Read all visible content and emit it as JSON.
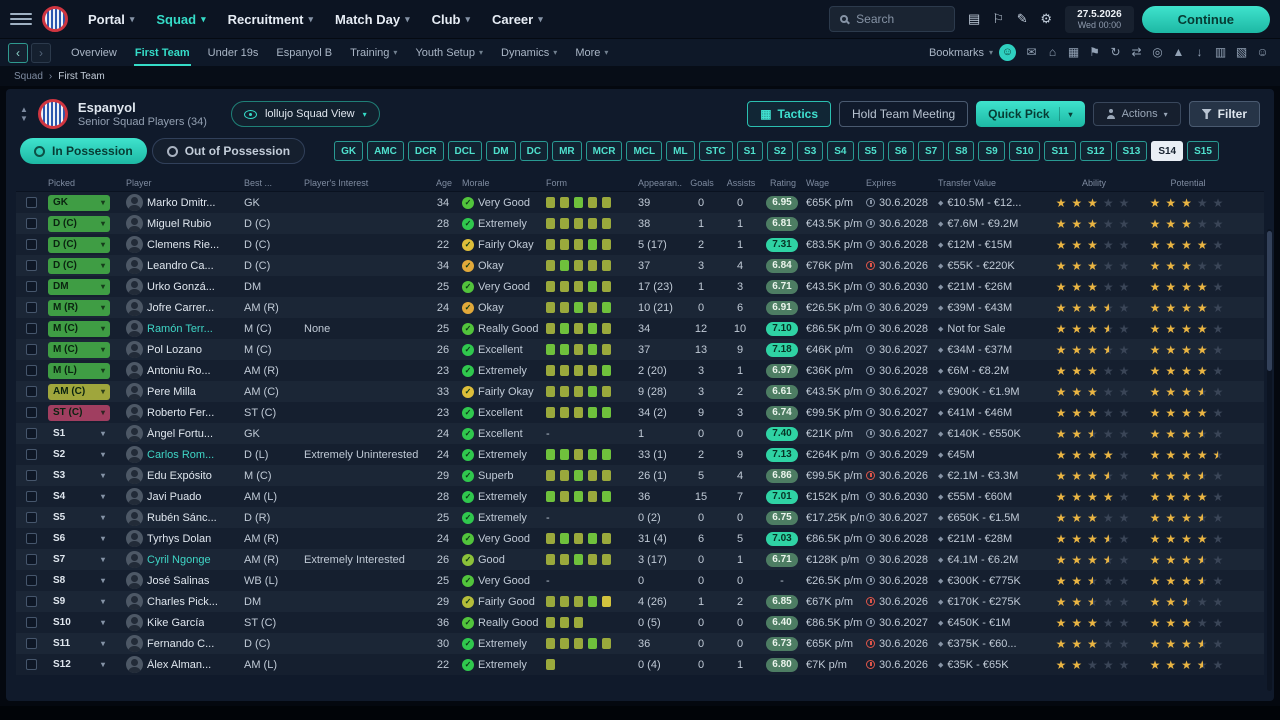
{
  "colors": {
    "accent": "#2ed3c1",
    "star": "#eab543",
    "red": "#e0564a",
    "form": {
      "g": "#6fc13c",
      "o": "#9aa93c",
      "y": "#d2c33e"
    }
  },
  "topbar": {
    "menu": [
      {
        "label": "Portal",
        "caret": true
      },
      {
        "label": "Squad",
        "caret": true,
        "active": true
      },
      {
        "label": "Recruitment",
        "caret": true
      },
      {
        "label": "Match Day",
        "caret": true
      },
      {
        "label": "Club",
        "caret": true
      },
      {
        "label": "Career",
        "caret": true
      }
    ],
    "search_placeholder": "Search",
    "icons": [
      {
        "name": "manual-icon",
        "glyph": "▤"
      },
      {
        "name": "flag-icon",
        "glyph": "⚐"
      },
      {
        "name": "edit-icon",
        "glyph": "✎"
      },
      {
        "name": "settings-icon",
        "glyph": "⚙"
      }
    ],
    "date": "27.5.2026",
    "day": "Wed",
    "time": "00:00",
    "continue_label": "Continue"
  },
  "subbar": {
    "items": [
      {
        "label": "Overview"
      },
      {
        "label": "First Team",
        "active": true
      },
      {
        "label": "Under 19s"
      },
      {
        "label": "Espanyol B"
      },
      {
        "label": "Training",
        "caret": true
      },
      {
        "label": "Youth Setup",
        "caret": true
      },
      {
        "label": "Dynamics",
        "caret": true
      },
      {
        "label": "More",
        "caret": true
      }
    ],
    "bookmarks_label": "Bookmarks",
    "icons": [
      {
        "name": "inbox-icon",
        "glyph": "✉"
      },
      {
        "name": "club-vision-icon",
        "glyph": "⌂"
      },
      {
        "name": "squad-planner-icon",
        "glyph": "▦"
      },
      {
        "name": "promises-icon",
        "glyph": "⚑"
      },
      {
        "name": "refresh-icon",
        "glyph": "↻"
      },
      {
        "name": "transfers-icon",
        "glyph": "⇄"
      },
      {
        "name": "scouting-icon",
        "glyph": "◎"
      },
      {
        "name": "training-icon",
        "glyph": "▲"
      },
      {
        "name": "download-icon",
        "glyph": "↓"
      },
      {
        "name": "calendar-icon",
        "glyph": "▥"
      },
      {
        "name": "league-icon",
        "glyph": "▧"
      },
      {
        "name": "social-icon",
        "glyph": "☺"
      }
    ]
  },
  "breadcrumb": {
    "root": "Squad",
    "sep": "›",
    "current": "First Team"
  },
  "header": {
    "club_name": "Espanyol",
    "subtitle": "Senior Squad Players (34)",
    "view_label": "lollujo Squad View",
    "tactics": "Tactics",
    "team_meeting": "Hold Team Meeting",
    "quick_pick": "Quick Pick",
    "actions": "Actions",
    "filter": "Filter"
  },
  "filters": {
    "in_possession": "In Possession",
    "out_of_possession": "Out of Possession",
    "buttons": [
      "GK",
      "AMC",
      "DCR",
      "DCL",
      "DM",
      "DC",
      "MR",
      "MCR",
      "MCL",
      "ML",
      "STC",
      "S1",
      "S2",
      "S3",
      "S4",
      "S5",
      "S6",
      "S7",
      "S8",
      "S9",
      "S10",
      "S11",
      "S12",
      "S13",
      "S14",
      "S15"
    ],
    "active_button": "S14"
  },
  "table": {
    "columns": {
      "picked": "Picked",
      "player": "Player",
      "best": "Best ...",
      "interest": "Player's Interest",
      "age": "Age",
      "morale": "Morale",
      "form": "Form",
      "apps": "Appearan...",
      "goals": "Goals",
      "assists": "Assists",
      "rating": "Rating",
      "wage": "Wage",
      "expires": "Expires",
      "value": "Transfer Value",
      "ability": "Ability",
      "potential": "Potential"
    },
    "rows": [
      {
        "picked_type": "badge",
        "picked_label": "GK",
        "picked_color": "#3f9d44",
        "name": "Marko Dmitr...",
        "link": false,
        "best": "GK",
        "interest": "",
        "age": "34",
        "morale": "Very Good",
        "morale_color": "#52c43c",
        "form": [
          "o",
          "o",
          "g",
          "o",
          "o"
        ],
        "apps": "39",
        "goals": "0",
        "assists": "0",
        "rating": "6.95",
        "wage": "€65K p/m",
        "expires": "30.6.2028",
        "expires_red": false,
        "value": "€10.5M - €12...",
        "ability": 3,
        "potential": 3
      },
      {
        "picked_type": "badge",
        "picked_label": "D (C)",
        "picked_color": "#3f9d44",
        "name": "Miguel Rubio",
        "link": false,
        "best": "D (C)",
        "interest": "",
        "age": "28",
        "morale": "Extremely",
        "morale_color": "#30c84e",
        "form": [
          "o",
          "o",
          "o",
          "o",
          "o"
        ],
        "apps": "38",
        "goals": "1",
        "assists": "1",
        "rating": "6.81",
        "wage": "€43.5K p/m",
        "expires": "30.6.2028",
        "expires_red": false,
        "value": "€7.6M - €9.2M",
        "ability": 3,
        "potential": 3
      },
      {
        "picked_type": "badge",
        "picked_label": "D (C)",
        "picked_color": "#3f9d44",
        "name": "Clemens Rie...",
        "link": false,
        "best": "D (C)",
        "interest": "",
        "age": "22",
        "morale": "Fairly Okay",
        "morale_color": "#ddbe3a",
        "form": [
          "o",
          "o",
          "o",
          "g",
          "o"
        ],
        "apps": "5 (17)",
        "goals": "2",
        "assists": "1",
        "rating": "7.31",
        "wage": "€83.5K p/m",
        "expires": "30.6.2028",
        "expires_red": false,
        "value": "€12M - €15M",
        "ability": 3,
        "potential": 4
      },
      {
        "picked_type": "badge",
        "picked_label": "D (C)",
        "picked_color": "#3f9d44",
        "name": "Leandro Ca...",
        "link": false,
        "best": "D (C)",
        "interest": "",
        "age": "34",
        "morale": "Okay",
        "morale_color": "#e2a93a",
        "form": [
          "o",
          "g",
          "o",
          "o",
          "o"
        ],
        "apps": "37",
        "goals": "3",
        "assists": "4",
        "rating": "6.84",
        "wage": "€76K p/m",
        "expires": "30.6.2026",
        "expires_red": true,
        "value": "€55K - €220K",
        "ability": 3,
        "potential": 3
      },
      {
        "picked_type": "badge",
        "picked_label": "DM",
        "picked_color": "#3f9d44",
        "name": "Urko Gonzá...",
        "link": false,
        "best": "DM",
        "interest": "",
        "age": "25",
        "morale": "Very Good",
        "morale_color": "#52c43c",
        "form": [
          "o",
          "o",
          "o",
          "g",
          "o"
        ],
        "apps": "17 (23)",
        "goals": "1",
        "assists": "3",
        "rating": "6.71",
        "wage": "€43.5K p/m",
        "expires": "30.6.2030",
        "expires_red": false,
        "value": "€21M - €26M",
        "ability": 3,
        "potential": 4
      },
      {
        "picked_type": "badge",
        "picked_label": "M (R)",
        "picked_color": "#3f9d44",
        "name": "Jofre Carrer...",
        "link": false,
        "best": "AM (R)",
        "interest": "",
        "age": "24",
        "morale": "Okay",
        "morale_color": "#e2a93a",
        "form": [
          "o",
          "o",
          "g",
          "o",
          "g"
        ],
        "apps": "10 (21)",
        "goals": "0",
        "assists": "6",
        "rating": "6.91",
        "wage": "€26.5K p/m",
        "expires": "30.6.2029",
        "expires_red": false,
        "value": "€39M - €43M",
        "ability": 3.5,
        "potential": 4
      },
      {
        "picked_type": "badge",
        "picked_label": "M (C)",
        "picked_color": "#3f9d44",
        "name": "Ramón Terr...",
        "link": true,
        "best": "M (C)",
        "interest": "None",
        "age": "25",
        "morale": "Really Good",
        "morale_color": "#52c43c",
        "form": [
          "o",
          "g",
          "o",
          "g",
          "o"
        ],
        "apps": "34",
        "goals": "12",
        "assists": "10",
        "rating": "7.10",
        "wage": "€86.5K p/m",
        "expires": "30.6.2028",
        "expires_red": false,
        "value": "Not for Sale",
        "ability": 3.5,
        "potential": 4
      },
      {
        "picked_type": "badge",
        "picked_label": "M (C)",
        "picked_color": "#3f9d44",
        "name": "Pol Lozano",
        "link": false,
        "best": "M (C)",
        "interest": "",
        "age": "26",
        "morale": "Excellent",
        "morale_color": "#30c84e",
        "form": [
          "g",
          "g",
          "o",
          "g",
          "o"
        ],
        "apps": "37",
        "goals": "13",
        "assists": "9",
        "rating": "7.18",
        "wage": "€46K p/m",
        "expires": "30.6.2027",
        "expires_red": false,
        "value": "€34M - €37M",
        "ability": 3.5,
        "potential": 4
      },
      {
        "picked_type": "badge",
        "picked_label": "M (L)",
        "picked_color": "#3f9d44",
        "name": "Antoniu Ro...",
        "link": false,
        "best": "AM (R)",
        "interest": "",
        "age": "23",
        "morale": "Extremely",
        "morale_color": "#30c84e",
        "form": [
          "o",
          "o",
          "o",
          "o",
          "g"
        ],
        "apps": "2 (20)",
        "goals": "3",
        "assists": "1",
        "rating": "6.97",
        "wage": "€36K p/m",
        "expires": "30.6.2028",
        "expires_red": false,
        "value": "€6M - €8.2M",
        "ability": 3,
        "potential": 4
      },
      {
        "picked_type": "badge",
        "picked_label": "AM (C)",
        "picked_color": "#9fa63c",
        "name": "Pere Milla",
        "link": false,
        "best": "AM (C)",
        "interest": "",
        "age": "33",
        "morale": "Fairly Okay",
        "morale_color": "#ddbe3a",
        "form": [
          "o",
          "o",
          "o",
          "g",
          "o"
        ],
        "apps": "9 (28)",
        "goals": "3",
        "assists": "2",
        "rating": "6.61",
        "wage": "€43.5K p/m",
        "expires": "30.6.2027",
        "expires_red": false,
        "value": "€900K - €1.9M",
        "ability": 3,
        "potential": 3.5
      },
      {
        "picked_type": "badge",
        "picked_label": "ST (C)",
        "picked_color": "#a03e60",
        "name": "Roberto Fer...",
        "link": false,
        "best": "ST (C)",
        "interest": "",
        "age": "23",
        "morale": "Excellent",
        "morale_color": "#30c84e",
        "form": [
          "o",
          "o",
          "o",
          "g",
          "g"
        ],
        "apps": "34 (2)",
        "goals": "9",
        "assists": "3",
        "rating": "6.74",
        "wage": "€99.5K p/m",
        "expires": "30.6.2027",
        "expires_red": false,
        "value": "€41M - €46M",
        "ability": 3,
        "potential": 4
      },
      {
        "picked_type": "slot",
        "picked_label": "S1",
        "name": "Ángel Fortu...",
        "link": false,
        "best": "GK",
        "interest": "",
        "age": "24",
        "morale": "Excellent",
        "morale_color": "#30c84e",
        "form": null,
        "apps": "1",
        "goals": "0",
        "assists": "0",
        "rating": "7.40",
        "wage": "€21K p/m",
        "expires": "30.6.2027",
        "expires_red": false,
        "value": "€140K - €550K",
        "ability": 2.5,
        "potential": 3.5
      },
      {
        "picked_type": "slot",
        "picked_label": "S2",
        "name": "Carlos Rom...",
        "link": true,
        "best": "D (L)",
        "interest": "Extremely Uninterested",
        "age": "24",
        "morale": "Extremely",
        "morale_color": "#30c84e",
        "form": [
          "g",
          "g",
          "o",
          "g",
          "g"
        ],
        "apps": "33 (1)",
        "goals": "2",
        "assists": "9",
        "rating": "7.13",
        "wage": "€264K p/m",
        "expires": "30.6.2029",
        "expires_red": false,
        "value": "€45M",
        "ability": 4,
        "potential": 4.5
      },
      {
        "picked_type": "slot",
        "picked_label": "S3",
        "name": "Edu Expósito",
        "link": false,
        "best": "M (C)",
        "interest": "",
        "age": "29",
        "morale": "Superb",
        "morale_color": "#30c84e",
        "form": [
          "o",
          "o",
          "g",
          "o",
          "o"
        ],
        "apps": "26 (1)",
        "goals": "5",
        "assists": "4",
        "rating": "6.86",
        "wage": "€99.5K p/m",
        "expires": "30.6.2026",
        "expires_red": true,
        "value": "€2.1M - €3.3M",
        "ability": 3.5,
        "potential": 3.5
      },
      {
        "picked_type": "slot",
        "picked_label": "S4",
        "name": "Javi Puado",
        "link": false,
        "best": "AM (L)",
        "interest": "",
        "age": "28",
        "morale": "Extremely",
        "morale_color": "#30c84e",
        "form": [
          "g",
          "o",
          "g",
          "o",
          "g"
        ],
        "apps": "36",
        "goals": "15",
        "assists": "7",
        "rating": "7.01",
        "wage": "€152K p/m",
        "expires": "30.6.2030",
        "expires_red": false,
        "value": "€55M - €60M",
        "ability": 4,
        "potential": 4
      },
      {
        "picked_type": "slot",
        "picked_label": "S5",
        "name": "Rubén Sánc...",
        "link": false,
        "best": "D (R)",
        "interest": "",
        "age": "25",
        "morale": "Extremely",
        "morale_color": "#30c84e",
        "form": null,
        "apps": "0 (2)",
        "goals": "0",
        "assists": "0",
        "rating": "6.75",
        "wage": "€17.25K p/m",
        "expires": "30.6.2027",
        "expires_red": false,
        "value": "€650K - €1.5M",
        "ability": 3,
        "potential": 3.5
      },
      {
        "picked_type": "slot",
        "picked_label": "S6",
        "name": "Tyrhys Dolan",
        "link": false,
        "best": "AM (R)",
        "interest": "",
        "age": "24",
        "morale": "Very Good",
        "morale_color": "#52c43c",
        "form": [
          "o",
          "g",
          "o",
          "g",
          "o"
        ],
        "apps": "31 (4)",
        "goals": "6",
        "assists": "5",
        "rating": "7.03",
        "wage": "€86.5K p/m",
        "expires": "30.6.2028",
        "expires_red": false,
        "value": "€21M - €28M",
        "ability": 3.5,
        "potential": 4
      },
      {
        "picked_type": "slot",
        "picked_label": "S7",
        "name": "Cyril Ngonge",
        "link": true,
        "best": "AM (R)",
        "interest": "Extremely Interested",
        "age": "26",
        "morale": "Good",
        "morale_color": "#8cc23a",
        "form": [
          "o",
          "o",
          "g",
          "o",
          "o"
        ],
        "apps": "3 (17)",
        "goals": "0",
        "assists": "1",
        "rating": "6.71",
        "wage": "€128K p/m",
        "expires": "30.6.2028",
        "expires_red": false,
        "value": "€4.1M - €6.2M",
        "ability": 3.5,
        "potential": 3.5
      },
      {
        "picked_type": "slot",
        "picked_label": "S8",
        "name": "José Salinas",
        "link": false,
        "best": "WB (L)",
        "interest": "",
        "age": "25",
        "morale": "Very Good",
        "morale_color": "#52c43c",
        "form": null,
        "apps": "0",
        "goals": "0",
        "assists": "0",
        "rating": "-",
        "wage": "€26.5K p/m",
        "expires": "30.6.2028",
        "expires_red": false,
        "value": "€300K - €775K",
        "ability": 2.5,
        "potential": 3.5
      },
      {
        "picked_type": "slot",
        "picked_label": "S9",
        "name": "Charles Pick...",
        "link": false,
        "best": "DM",
        "interest": "",
        "age": "29",
        "morale": "Fairly Good",
        "morale_color": "#b5bd3a",
        "form": [
          "o",
          "o",
          "o",
          "g",
          "y"
        ],
        "apps": "4 (26)",
        "goals": "1",
        "assists": "2",
        "rating": "6.85",
        "wage": "€67K p/m",
        "expires": "30.6.2026",
        "expires_red": true,
        "value": "€170K - €275K",
        "ability": 2.5,
        "potential": 2.5
      },
      {
        "picked_type": "slot",
        "picked_label": "S10",
        "name": "Kike García",
        "link": false,
        "best": "ST (C)",
        "interest": "",
        "age": "36",
        "morale": "Really Good",
        "morale_color": "#52c43c",
        "form": [
          "o",
          "o",
          "o"
        ],
        "apps": "0 (5)",
        "goals": "0",
        "assists": "0",
        "rating": "6.40",
        "wage": "€86.5K p/m",
        "expires": "30.6.2027",
        "expires_red": false,
        "value": "€450K - €1M",
        "ability": 3,
        "potential": 3
      },
      {
        "picked_type": "slot",
        "picked_label": "S11",
        "name": "Fernando C...",
        "link": false,
        "best": "D (C)",
        "interest": "",
        "age": "30",
        "morale": "Extremely",
        "morale_color": "#30c84e",
        "form": [
          "o",
          "o",
          "o",
          "g",
          "o"
        ],
        "apps": "36",
        "goals": "0",
        "assists": "0",
        "rating": "6.73",
        "wage": "€65K p/m",
        "expires": "30.6.2026",
        "expires_red": true,
        "value": "€375K - €60...",
        "ability": 3,
        "potential": 3.5
      },
      {
        "picked_type": "slot",
        "picked_label": "S12",
        "name": "Àlex Alman...",
        "link": false,
        "best": "AM (L)",
        "interest": "",
        "age": "22",
        "morale": "Extremely",
        "morale_color": "#30c84e",
        "form": [
          "o"
        ],
        "apps": "0 (4)",
        "goals": "0",
        "assists": "1",
        "rating": "6.80",
        "wage": "€7K p/m",
        "expires": "30.6.2026",
        "expires_red": true,
        "value": "€35K - €65K",
        "ability": 2,
        "potential": 3.5
      }
    ]
  }
}
